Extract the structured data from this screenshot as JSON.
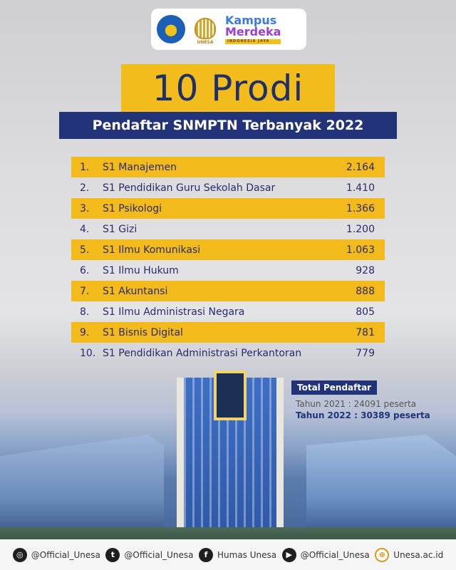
{
  "logos": {
    "kemdikbud": "kemdikbud-logo",
    "unesa_label": "UNESA",
    "kampus_merdeka_line1": "Kampus",
    "kampus_merdeka_line2": "Merdeka",
    "kampus_merdeka_tagline": "INDONESIA JAYA"
  },
  "title": "10 Prodi",
  "subtitle": "Pendaftar SNMPTN Terbanyak 2022",
  "rows": [
    {
      "no": "1.",
      "name": "S1 Manajemen",
      "value": "2.164"
    },
    {
      "no": "2.",
      "name": "S1 Pendidikan Guru Sekolah Dasar",
      "value": "1.410"
    },
    {
      "no": "3.",
      "name": "S1 Psikologi",
      "value": "1.366"
    },
    {
      "no": "4.",
      "name": "S1 Gizi",
      "value": "1.200"
    },
    {
      "no": "5.",
      "name": "S1 Ilmu Komunikasi",
      "value": "1.063"
    },
    {
      "no": "6.",
      "name": "S1 Ilmu Hukum",
      "value": "928"
    },
    {
      "no": "7.",
      "name": "S1 Akuntansi",
      "value": "888"
    },
    {
      "no": "8.",
      "name": "S1 Ilmu Administrasi Negara",
      "value": "805"
    },
    {
      "no": "9.",
      "name": "S1 Bisnis Digital",
      "value": "781"
    },
    {
      "no": "10.",
      "name": "S1 Pendidikan Administrasi Perkantoran",
      "value": "779"
    }
  ],
  "total": {
    "label": "Total Pendaftar",
    "line_2021": "Tahun 2021  : 24091 peserta",
    "line_2022": "Tahun 2022 : 30389 peserta"
  },
  "footer": {
    "instagram": "@Official_Unesa",
    "twitter": "@Official_Unesa",
    "facebook": "Humas Unesa",
    "youtube": "@Official_Unesa",
    "website": "Unesa.ac.id"
  },
  "colors": {
    "gold": "#f2bb1b",
    "navy": "#22337a"
  }
}
